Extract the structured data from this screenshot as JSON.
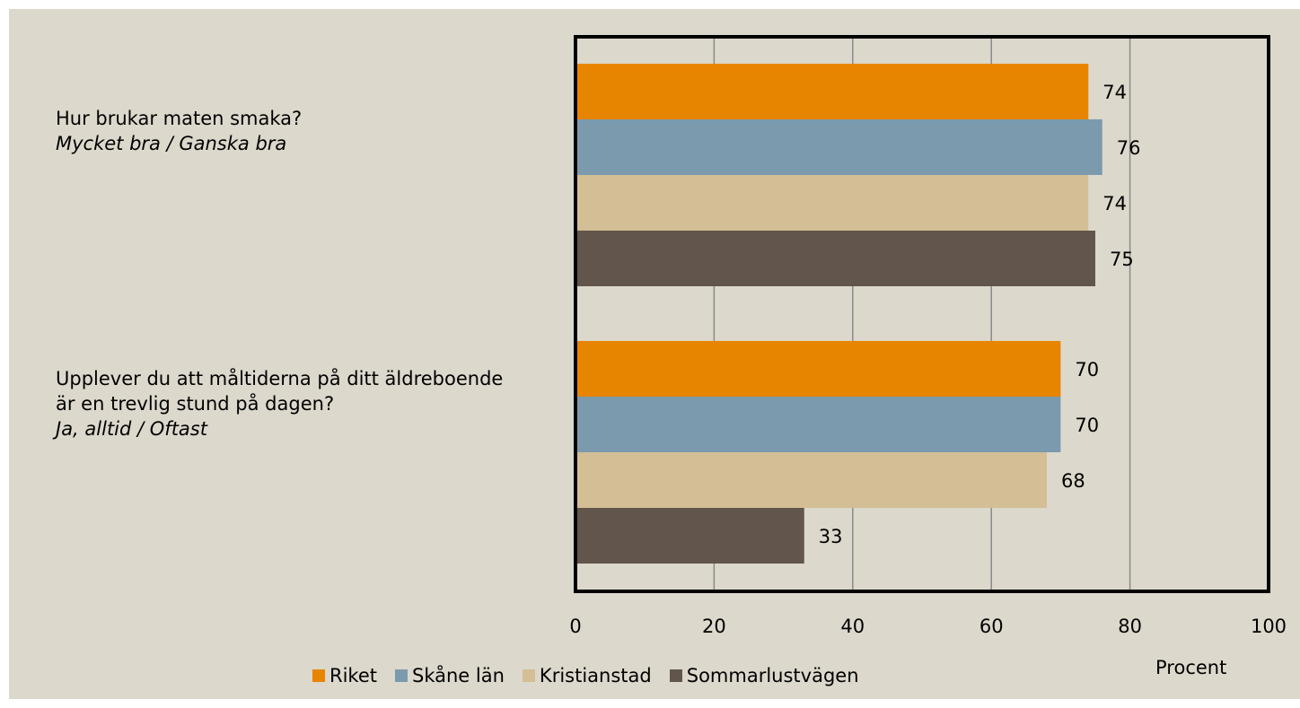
{
  "chart_data": {
    "type": "bar",
    "orientation": "horizontal",
    "categories": [
      {
        "question": "Hur brukar maten smaka?",
        "answer": "Mycket bra / Ganska bra"
      },
      {
        "question": "Upplever du att måltiderna på ditt äldreboende är en trevlig stund på dagen?",
        "answer": "Ja, alltid / Oftast"
      }
    ],
    "series": [
      {
        "name": "Riket",
        "color": "#e88500",
        "values": [
          74,
          70
        ]
      },
      {
        "name": "Skåne län",
        "color": "#7b9aae",
        "values": [
          76,
          70
        ]
      },
      {
        "name": "Kristianstad",
        "color": "#d3be95",
        "values": [
          74,
          68
        ]
      },
      {
        "name": "Sommarlustvägen",
        "color": "#62554b",
        "values": [
          75,
          33
        ]
      }
    ],
    "xlabel": "Procent",
    "xlim": [
      0,
      100
    ],
    "xticks": [
      "0",
      "20",
      "40",
      "60",
      "80",
      "100"
    ],
    "grid": true,
    "legend_position": "bottom",
    "background": "#dcd8cc",
    "plot_background": "#dcd8cc"
  }
}
